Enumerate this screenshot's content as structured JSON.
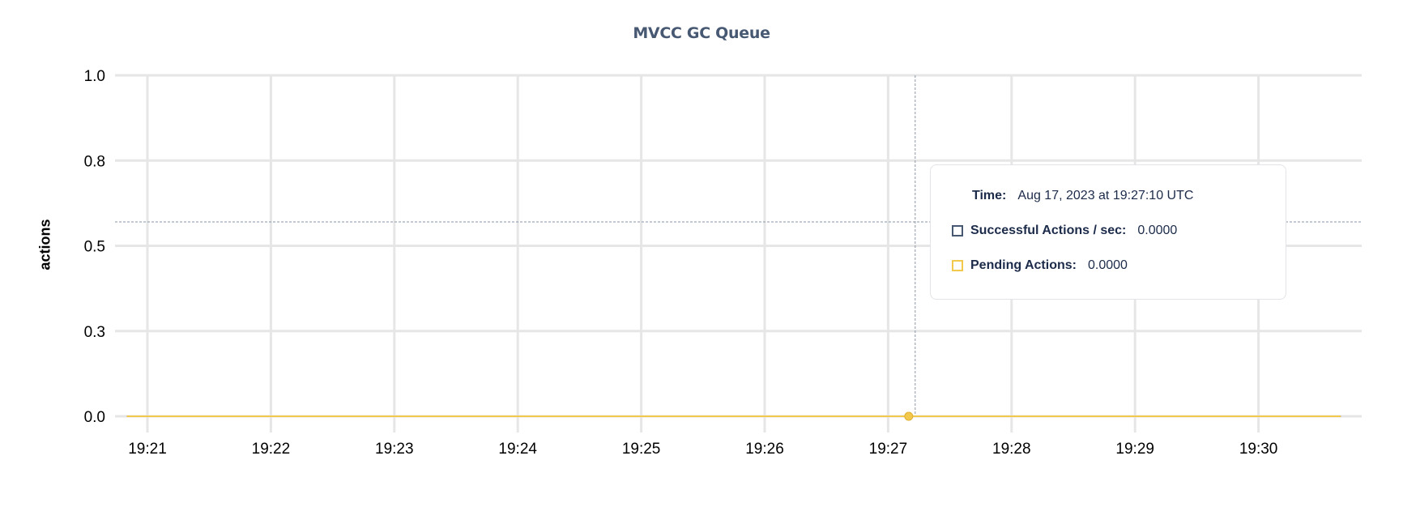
{
  "chart_data": {
    "type": "line",
    "title": "MVCC GC Queue",
    "xlabel": "",
    "ylabel": "actions",
    "x_ticks": [
      "19:21",
      "19:22",
      "19:23",
      "19:24",
      "19:25",
      "19:26",
      "19:27",
      "19:28",
      "19:29",
      "19:30"
    ],
    "y_ticks": [
      {
        "value": 0,
        "label": "0.0"
      },
      {
        "value": 0.25,
        "label": "0.3"
      },
      {
        "value": 0.5,
        "label": "0.5"
      },
      {
        "value": 0.75,
        "label": "0.8"
      },
      {
        "value": 1.0,
        "label": "1.0"
      }
    ],
    "ylim": [
      0,
      1
    ],
    "xlim": [
      "19:20:45",
      "19:30:45"
    ],
    "grid": true,
    "x": [
      "19:20:50",
      "19:21:50",
      "19:22:50",
      "19:23:50",
      "19:24:50",
      "19:25:50",
      "19:26:50",
      "19:27:10",
      "19:27:50",
      "19:28:50",
      "19:29:50",
      "19:30:40"
    ],
    "series": [
      {
        "name": "Successful Actions / sec",
        "color": "#475872",
        "values": [
          0,
          0,
          0,
          0,
          0,
          0,
          0,
          0,
          0,
          0,
          0,
          0
        ]
      },
      {
        "name": "Pending Actions",
        "color": "#F2C94C",
        "values": [
          0,
          0,
          0,
          0,
          0,
          0,
          0,
          0,
          0,
          0,
          0,
          0
        ]
      }
    ],
    "hover": {
      "x": "19:27:10",
      "cursor_y": 0.57
    }
  },
  "tooltip": {
    "time_label": "Time:",
    "time_value": "Aug 17, 2023 at 19:27:10 UTC",
    "rows": [
      {
        "label": "Successful Actions / sec:",
        "value": "0.0000",
        "color": "#475872"
      },
      {
        "label": "Pending Actions:",
        "value": "0.0000",
        "color": "#F2C94C"
      }
    ]
  }
}
